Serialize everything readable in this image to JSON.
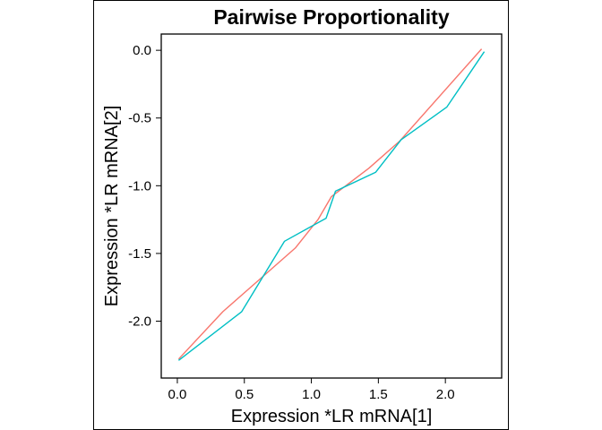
{
  "chart_data": {
    "type": "line",
    "title": "Pairwise Proportionality",
    "xlabel": "Expression *LR mRNA[1]",
    "ylabel": "Expression *LR mRNA[2]",
    "xlim": [
      -0.12,
      2.42
    ],
    "ylim": [
      -2.42,
      0.12
    ],
    "xticks": [
      0.0,
      0.5,
      1.0,
      1.5,
      2.0
    ],
    "xtick_labels": [
      "0.0",
      "0.5",
      "1.0",
      "1.5",
      "2.0"
    ],
    "yticks": [
      0.0,
      -0.5,
      -1.0,
      -1.5,
      -2.0
    ],
    "ytick_labels": [
      "0.0",
      "-0.5",
      "-1.0",
      "-1.5",
      "-2.0"
    ],
    "grid": false,
    "legend": "none",
    "series": [
      {
        "color": "#f8766d",
        "x": [
          0.01,
          0.34,
          0.65,
          0.88,
          1.05,
          1.15,
          1.43,
          1.66,
          2.27
        ],
        "y": [
          -2.28,
          -1.93,
          -1.66,
          -1.46,
          -1.25,
          -1.08,
          -0.87,
          -0.67,
          0.01
        ]
      },
      {
        "color": "#00bfc4",
        "x": [
          0.01,
          0.48,
          0.8,
          1.11,
          1.18,
          1.48,
          1.67,
          2.01,
          2.29
        ],
        "y": [
          -2.29,
          -1.93,
          -1.41,
          -1.24,
          -1.04,
          -0.9,
          -0.66,
          -0.42,
          -0.01
        ]
      }
    ]
  }
}
